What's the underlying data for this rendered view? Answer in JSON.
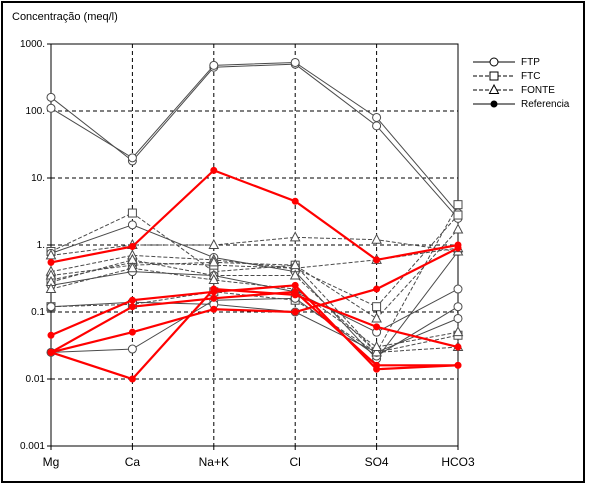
{
  "chart_data": {
    "type": "line",
    "title": "Concentração (meq/l)",
    "y_scale": "log",
    "ylim": [
      0.001,
      1000
    ],
    "y_ticks": [
      {
        "value": 1000,
        "label": "1000."
      },
      {
        "value": 100,
        "label": "100."
      },
      {
        "value": 10,
        "label": "10."
      },
      {
        "value": 1,
        "label": "1."
      },
      {
        "value": 0.1,
        "label": "0.1"
      },
      {
        "value": 0.01,
        "label": "0.01"
      },
      {
        "value": 0.001,
        "label": "0.001"
      }
    ],
    "categories": [
      "Mg",
      "Ca",
      "Na+K",
      "Cl",
      "SO4",
      "HCO3"
    ],
    "grid": true,
    "legend_position": "top-right",
    "legend": [
      {
        "label": "FTP",
        "marker": "circle",
        "dash": "solid"
      },
      {
        "label": "FTC",
        "marker": "square",
        "dash": "dashed"
      },
      {
        "label": "FONTE",
        "marker": "triangle",
        "dash": "dashed"
      },
      {
        "label": "Referencia",
        "marker": "plus",
        "dash": "solid"
      }
    ],
    "series": [
      {
        "group": "FTP",
        "values": [
          160,
          18,
          450,
          500,
          60,
          2.5
        ]
      },
      {
        "group": "FTP",
        "values": [
          110,
          20,
          480,
          530,
          80,
          3.0
        ]
      },
      {
        "group": "FTC",
        "values": [
          0.8,
          3.0,
          0.4,
          0.5,
          0.025,
          4.0
        ]
      },
      {
        "group": "FTC",
        "values": [
          0.12,
          0.13,
          0.2,
          0.15,
          0.025,
          0.045
        ]
      },
      {
        "group": "FTC",
        "values": [
          0.3,
          0.55,
          0.5,
          0.45,
          0.12,
          2.8
        ]
      },
      {
        "group": "FTP",
        "values": [
          0.75,
          2.0,
          0.65,
          0.4,
          0.02,
          0.8
        ]
      },
      {
        "group": "FTP",
        "values": [
          0.25,
          0.4,
          0.35,
          0.2,
          0.05,
          0.22
        ]
      },
      {
        "group": "FTP",
        "values": [
          0.025,
          0.028,
          0.15,
          0.16,
          0.022,
          0.12
        ]
      },
      {
        "group": "FTP",
        "values": [
          0.12,
          0.14,
          0.13,
          0.1,
          0.025,
          0.08
        ]
      },
      {
        "group": "FONTE",
        "values": [
          0.7,
          1.0,
          1.0,
          1.3,
          1.2,
          0.8
        ]
      },
      {
        "group": "FONTE",
        "values": [
          0.4,
          0.7,
          0.6,
          0.45,
          0.6,
          0.9
        ]
      },
      {
        "group": "FONTE",
        "values": [
          0.35,
          0.5,
          0.55,
          0.5,
          0.08,
          1.7
        ]
      },
      {
        "group": "FONTE",
        "values": [
          0.28,
          0.6,
          0.35,
          0.35,
          0.025,
          0.03
        ]
      },
      {
        "group": "FONTE",
        "values": [
          0.22,
          0.45,
          0.3,
          0.22,
          0.03,
          0.05
        ]
      },
      {
        "group": "Referencia",
        "values": [
          0.55,
          0.95,
          13,
          4.5,
          0.6,
          1.0
        ]
      },
      {
        "group": "Referencia",
        "values": [
          0.045,
          0.15,
          0.2,
          0.25,
          0.014,
          0.016
        ]
      },
      {
        "group": "Referencia",
        "values": [
          0.025,
          0.01,
          0.22,
          0.18,
          0.06,
          0.03
        ]
      },
      {
        "group": "Referencia",
        "values": [
          0.025,
          0.05,
          0.11,
          0.1,
          0.22,
          0.9
        ]
      },
      {
        "group": "Referencia",
        "values": [
          0.025,
          0.12,
          0.16,
          0.2,
          0.016,
          0.016
        ]
      }
    ],
    "colors": {
      "gray": "#4a4a4a",
      "red": "#ff0000",
      "grid": "#000000"
    }
  }
}
